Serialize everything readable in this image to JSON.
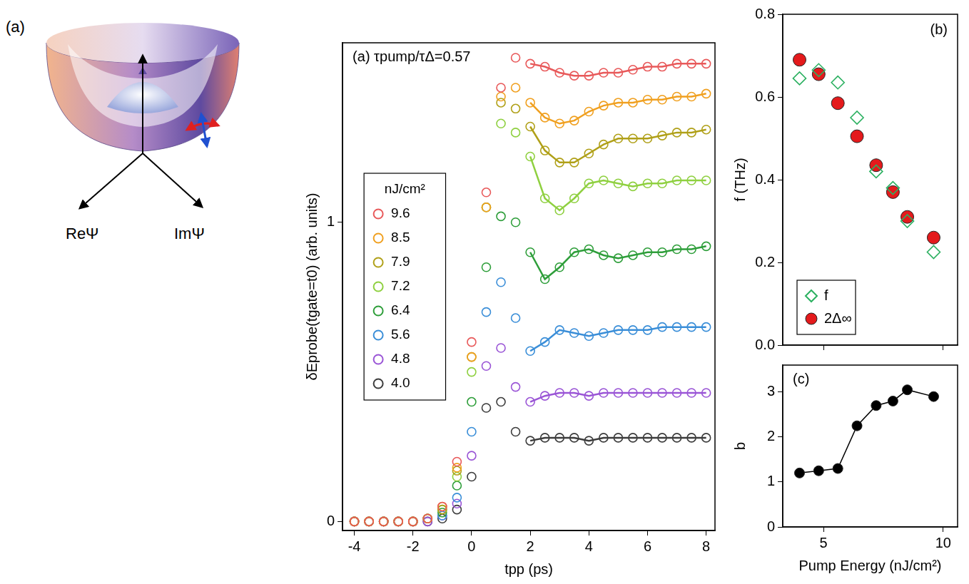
{
  "diagram": {
    "label": "(a)",
    "axis_labels": [
      "ReΨ",
      "ImΨ"
    ]
  },
  "chart_data": [
    {
      "type": "scatter",
      "title": "(a) τpump/τΔ=0.57",
      "x_label": "tpp (ps)",
      "y_label": "δEprobe(tgate=t0) (arb. units)",
      "legend_title": "nJ/cm²",
      "legend": "left",
      "grid": false,
      "x": [
        -4,
        -3.5,
        -3,
        -2.5,
        -2,
        -1.5,
        -1,
        -0.5,
        0,
        0.5,
        1,
        1.5,
        2,
        2.5,
        3,
        3.5,
        4,
        4.5,
        5,
        5.5,
        6,
        6.5,
        7,
        7.5,
        8
      ],
      "xlim": [
        -4.4,
        8.3
      ],
      "xticks": [
        -4,
        -2,
        0,
        2,
        4,
        6,
        8
      ],
      "ylim": [
        -0.03,
        1.6
      ],
      "yticks": [
        0,
        1
      ],
      "series": [
        {
          "name": "9.6",
          "color": "#e8595a",
          "marker": "open circle",
          "values": [
            0,
            0,
            0,
            0,
            0,
            0.01,
            0.05,
            0.2,
            0.6,
            1.1,
            1.45,
            1.55,
            1.53,
            1.52,
            1.5,
            1.49,
            1.49,
            1.5,
            1.5,
            1.51,
            1.52,
            1.52,
            1.53,
            1.53,
            1.53
          ],
          "fit": [
            null,
            null,
            null,
            null,
            null,
            null,
            null,
            null,
            null,
            null,
            null,
            null,
            1.53,
            1.52,
            1.5,
            1.49,
            1.49,
            1.5,
            1.5,
            1.51,
            1.52,
            1.52,
            1.53,
            1.53,
            1.53
          ]
        },
        {
          "name": "8.5",
          "color": "#f0a020",
          "marker": "open circle",
          "values": [
            0,
            0,
            0,
            0,
            0,
            0.01,
            0.05,
            0.18,
            0.55,
            1.05,
            1.42,
            1.45,
            1.4,
            1.35,
            1.33,
            1.34,
            1.37,
            1.39,
            1.4,
            1.4,
            1.41,
            1.41,
            1.42,
            1.42,
            1.43
          ],
          "fit": [
            null,
            null,
            null,
            null,
            null,
            null,
            null,
            null,
            null,
            null,
            null,
            null,
            1.4,
            1.35,
            1.33,
            1.34,
            1.37,
            1.39,
            1.4,
            1.4,
            1.41,
            1.41,
            1.42,
            1.42,
            1.43
          ]
        },
        {
          "name": "7.9",
          "color": "#b0a018",
          "marker": "open circle",
          "values": [
            0,
            0,
            0,
            0,
            0,
            0.01,
            0.04,
            0.17,
            0.55,
            1.05,
            1.4,
            1.38,
            1.32,
            1.24,
            1.2,
            1.2,
            1.23,
            1.26,
            1.28,
            1.28,
            1.28,
            1.29,
            1.3,
            1.3,
            1.31
          ],
          "fit": [
            null,
            null,
            null,
            null,
            null,
            null,
            null,
            null,
            null,
            null,
            null,
            null,
            1.32,
            1.24,
            1.2,
            1.2,
            1.23,
            1.26,
            1.28,
            1.28,
            1.28,
            1.29,
            1.3,
            1.3,
            1.31
          ]
        },
        {
          "name": "7.2",
          "color": "#8fd040",
          "marker": "open circle",
          "values": [
            0,
            0,
            0,
            0,
            0,
            0.01,
            0.04,
            0.15,
            0.5,
            1.05,
            1.33,
            1.3,
            1.22,
            1.08,
            1.04,
            1.08,
            1.13,
            1.14,
            1.13,
            1.12,
            1.13,
            1.13,
            1.14,
            1.14,
            1.14
          ],
          "fit": [
            null,
            null,
            null,
            null,
            null,
            null,
            null,
            null,
            null,
            null,
            null,
            null,
            1.22,
            1.08,
            1.04,
            1.08,
            1.13,
            1.14,
            1.13,
            1.12,
            1.13,
            1.13,
            1.14,
            1.14,
            1.14
          ]
        },
        {
          "name": "6.4",
          "color": "#2e9e3a",
          "marker": "open circle",
          "values": [
            0,
            0,
            0,
            0,
            0,
            0.01,
            0.03,
            0.12,
            0.4,
            0.85,
            1.02,
            1.0,
            0.9,
            0.81,
            0.85,
            0.9,
            0.91,
            0.89,
            0.88,
            0.89,
            0.9,
            0.9,
            0.91,
            0.91,
            0.92
          ],
          "fit": [
            null,
            null,
            null,
            null,
            null,
            null,
            null,
            null,
            null,
            null,
            null,
            null,
            0.9,
            0.81,
            0.85,
            0.9,
            0.91,
            0.89,
            0.88,
            0.89,
            0.9,
            0.9,
            0.91,
            0.91,
            0.92
          ]
        },
        {
          "name": "5.6",
          "color": "#3a8ed8",
          "marker": "open circle",
          "values": [
            0,
            0,
            0,
            0,
            0,
            0.01,
            0.02,
            0.08,
            0.3,
            0.7,
            0.8,
            0.68,
            0.57,
            0.6,
            0.64,
            0.63,
            0.62,
            0.63,
            0.64,
            0.64,
            0.64,
            0.65,
            0.65,
            0.65,
            0.65
          ],
          "fit": [
            null,
            null,
            null,
            null,
            null,
            null,
            null,
            null,
            null,
            null,
            null,
            null,
            0.57,
            0.6,
            0.64,
            0.63,
            0.62,
            0.63,
            0.64,
            0.64,
            0.64,
            0.65,
            0.65,
            0.65,
            0.65
          ]
        },
        {
          "name": "4.8",
          "color": "#9a55d6",
          "marker": "open circle",
          "values": [
            0,
            0,
            0,
            0,
            0,
            0,
            0.02,
            0.06,
            0.22,
            0.52,
            0.58,
            0.45,
            0.4,
            0.42,
            0.43,
            0.43,
            0.42,
            0.43,
            0.43,
            0.43,
            0.43,
            0.43,
            0.43,
            0.43,
            0.43
          ],
          "fit": [
            null,
            null,
            null,
            null,
            null,
            null,
            null,
            null,
            null,
            null,
            null,
            null,
            0.4,
            0.42,
            0.43,
            0.43,
            0.42,
            0.43,
            0.43,
            0.43,
            0.43,
            0.43,
            0.43,
            0.43,
            0.43
          ]
        },
        {
          "name": "4.0",
          "color": "#3c3c3c",
          "marker": "open circle",
          "values": [
            0,
            0,
            0,
            0,
            0,
            0,
            0.01,
            0.04,
            0.15,
            0.38,
            0.4,
            0.3,
            0.27,
            0.28,
            0.28,
            0.28,
            0.27,
            0.28,
            0.28,
            0.28,
            0.28,
            0.28,
            0.28,
            0.28,
            0.28
          ],
          "fit": [
            null,
            null,
            null,
            null,
            null,
            null,
            null,
            null,
            null,
            null,
            null,
            null,
            0.27,
            0.28,
            0.28,
            0.28,
            0.27,
            0.28,
            0.28,
            0.28,
            0.28,
            0.28,
            0.28,
            0.28,
            0.28
          ]
        }
      ]
    },
    {
      "type": "scatter",
      "title": "(b)",
      "y_label": "f (THz)",
      "legend": "lower left",
      "grid": false,
      "tick_labels": "y",
      "x": [
        4.0,
        4.8,
        5.6,
        6.4,
        7.2,
        7.9,
        8.5,
        9.6
      ],
      "xlim": [
        3.3,
        10.6
      ],
      "xticks": [
        5,
        10
      ],
      "ylim": [
        0,
        0.8
      ],
      "yticks": [
        {
          "value": 0,
          "label": "0.0"
        },
        0.2,
        0.4,
        0.6,
        0.8
      ],
      "series": [
        {
          "name": "f",
          "color": "#2bb060",
          "marker": "open diamond",
          "values": [
            0.645,
            0.665,
            0.635,
            0.55,
            0.42,
            0.38,
            0.3,
            0.225
          ]
        },
        {
          "name": "2Δ∞",
          "color": "#e41a1c",
          "marker": "circle",
          "values": [
            0.69,
            0.655,
            0.585,
            0.505,
            0.435,
            0.37,
            0.31,
            0.26
          ]
        }
      ]
    },
    {
      "type": "line",
      "title": "(c)",
      "x_label": "Pump Energy (nJ/cm²)",
      "y_label": "b",
      "grid": false,
      "x": [
        4.0,
        4.8,
        5.6,
        6.4,
        7.2,
        7.9,
        8.5,
        9.6
      ],
      "xlim": [
        3.3,
        10.6
      ],
      "xticks": [
        5,
        10
      ],
      "ylim": [
        0,
        3.6
      ],
      "yticks": [
        0,
        1,
        2,
        3
      ],
      "color": "#000000",
      "marker": "circle",
      "values": [
        1.2,
        1.25,
        1.3,
        2.25,
        2.7,
        2.8,
        3.05,
        2.9
      ]
    }
  ]
}
